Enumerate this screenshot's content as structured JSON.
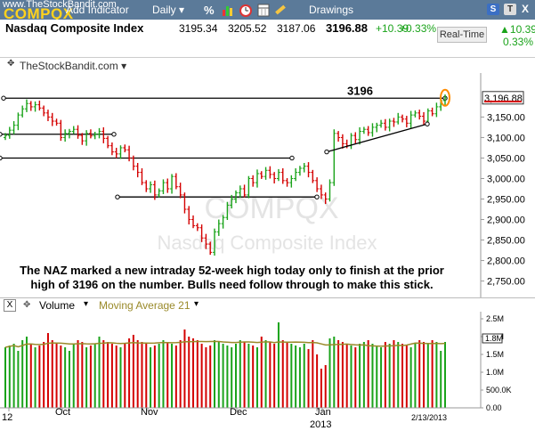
{
  "app": {
    "url_text": "www.TheStockBandit.com",
    "symbol": "COMPQX",
    "add_indicator": "Add Indicator",
    "period": "Daily",
    "drawings": "Drawings",
    "badges": [
      "S",
      "T",
      "X"
    ]
  },
  "quote": {
    "name": "Nasdaq Composite Index",
    "open": "3195.34",
    "high": "3205.52",
    "low": "3187.06",
    "last": "3196.88",
    "change": "+10.39",
    "change_pct": "+0.33%",
    "realtime_label": "Real-Time",
    "rt_change": "10.39",
    "rt_pct": "0.33%"
  },
  "watermark": {
    "site": "TheStockBandit.com",
    "symbol": "COMPQX",
    "name": "Nasdaq Composite Index"
  },
  "annotation": {
    "line1": "The NAZ marked a new intraday 52-week high today only to finish at the prior",
    "line2": "high of 3196 on the number. Bulls need follow through to make this stick.",
    "level_label": "3196"
  },
  "volume_panel": {
    "close_label": "X",
    "title": "Volume",
    "ma_label": "Moving Average 21",
    "ma_color": "#9a8a2a"
  },
  "colors": {
    "up": "#1aa31a",
    "down": "#d40000",
    "toolbar": "#5b7a99",
    "symbol": "#ffd21c",
    "highlight": "#ff8c00"
  },
  "chart_data": [
    {
      "type": "ohlc",
      "title": "Nasdaq Composite Index",
      "ylim": [
        2710,
        3240
      ],
      "y_ticks": [
        "3,150.00",
        "3,100.00",
        "3,050.00",
        "3,000.00",
        "2,950.00",
        "2,900.00",
        "2,850.00",
        "2,800.00",
        "2,750.00"
      ],
      "y_tick_values": [
        3150,
        3100,
        3050,
        3000,
        2950,
        2900,
        2850,
        2800,
        2750
      ],
      "last_price_label": "3,196.88",
      "x_labels": [
        "12",
        "Oct",
        "Nov",
        "Dec",
        "Jan",
        "2013",
        "2/13/2013"
      ],
      "close": [
        3105,
        3118,
        3130,
        3155,
        3170,
        3183,
        3175,
        3180,
        3172,
        3160,
        3150,
        3140,
        3135,
        3100,
        3110,
        3115,
        3120,
        3105,
        3092,
        3110,
        3104,
        3108,
        3115,
        3098,
        3080,
        3065,
        3060,
        3075,
        3070,
        3050,
        3030,
        3015,
        2990,
        2975,
        2985,
        2960,
        2970,
        2990,
        2975,
        3005,
        2980,
        2960,
        2925,
        2900,
        2885,
        2880,
        2855,
        2840,
        2820,
        2870,
        2890,
        2905,
        2935,
        2950,
        2965,
        2975,
        2960,
        3000,
        2990,
        3012,
        3005,
        3020,
        3010,
        3000,
        3015,
        2995,
        2990,
        3000,
        3015,
        3025,
        3030,
        3015,
        2995,
        2975,
        2960,
        2950,
        2990,
        3110,
        3100,
        3085,
        3080,
        3105,
        3095,
        3115,
        3120,
        3112,
        3125,
        3130,
        3135,
        3125,
        3140,
        3138,
        3150,
        3145,
        3135,
        3155,
        3160,
        3152,
        3140,
        3165,
        3158,
        3175,
        3190,
        3197
      ],
      "volume_ticks": [
        "2.5M",
        "2.0M",
        "1.5M",
        "1.0M",
        "500.0K",
        "0.00"
      ],
      "volume_tick_values": [
        2500000,
        2000000,
        1500000,
        1000000,
        500000,
        0
      ],
      "volume_label": "1.8M",
      "volume": [
        1700000,
        1750000,
        1800000,
        1600000,
        1900000,
        2000000,
        1800000,
        1700000,
        1750000,
        1850000,
        2100000,
        1900000,
        1800000,
        1750000,
        1700000,
        1600000,
        1800000,
        1900000,
        1850000,
        1700000,
        1750000,
        1800000,
        2000000,
        1900000,
        1850000,
        1800000,
        1750000,
        1700000,
        1800000,
        1950000,
        2050000,
        1900000,
        1850000,
        1800000,
        1700000,
        1750000,
        1800000,
        1900000,
        1850000,
        1800000,
        1750000,
        1900000,
        2200000,
        2000000,
        1950000,
        1900000,
        1800000,
        1700000,
        1750000,
        1900000,
        1850000,
        1800000,
        1750000,
        1700000,
        1800000,
        1900000,
        1850000,
        1800000,
        1750000,
        1700000,
        2000000,
        1900000,
        1850000,
        1800000,
        2400000,
        1900000,
        1850000,
        1800000,
        1750000,
        1700000,
        1800000,
        1650000,
        1900000,
        1500000,
        1100000,
        1200000,
        1950000,
        2000000,
        1900000,
        1850000,
        1800000,
        1750000,
        1700000,
        1800000,
        1850000,
        1900000,
        1800000,
        1750000,
        1700000,
        1850000,
        1800000,
        1900000,
        1850000,
        1800000,
        1750000,
        1700000,
        1800000,
        1900000,
        1850000,
        1800000,
        1900000,
        1850000,
        1600000,
        1850000
      ],
      "horizontal_levels": [
        3196,
        3108,
        3050,
        2955
      ],
      "ylabel": "",
      "xlabel": ""
    }
  ]
}
